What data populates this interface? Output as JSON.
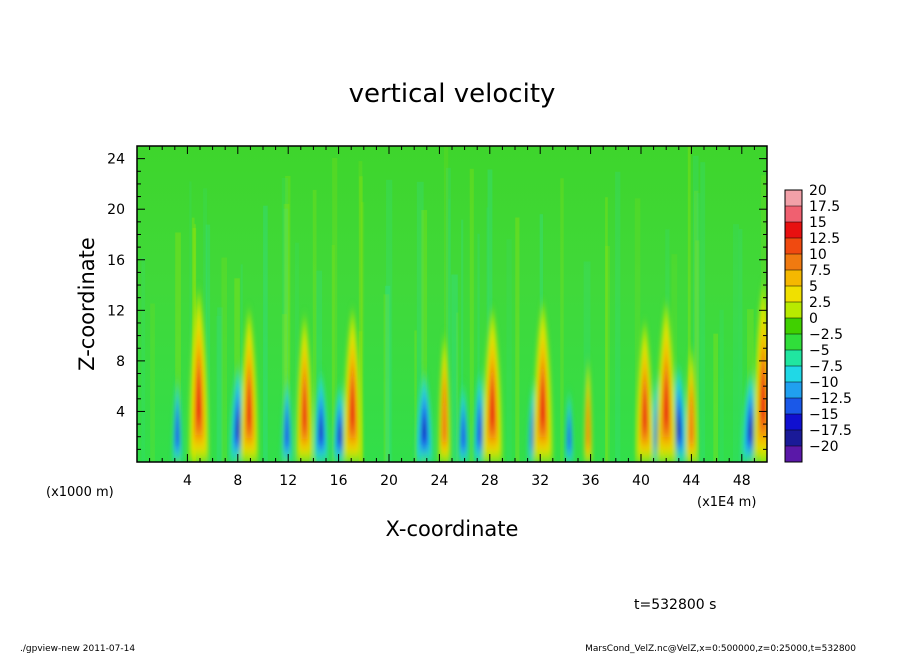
{
  "chart_data": {
    "type": "heatmap",
    "title": "vertical velocity",
    "xlabel": "X-coordinate",
    "ylabel": "Z-coordinate",
    "x_unit": "(x1E4 m)",
    "y_unit": "(x1000 m)",
    "xlim": [
      0,
      50
    ],
    "ylim": [
      0,
      25
    ],
    "x_ticks": [
      "4",
      "8",
      "12",
      "16",
      "20",
      "24",
      "28",
      "32",
      "36",
      "40",
      "44",
      "48"
    ],
    "y_ticks": [
      "4",
      "8",
      "12",
      "16",
      "20",
      "24"
    ],
    "x_tick_values": [
      4,
      8,
      12,
      16,
      20,
      24,
      28,
      32,
      36,
      40,
      44,
      48
    ],
    "y_tick_values": [
      4,
      8,
      12,
      16,
      20,
      24
    ],
    "colorbar": {
      "labels": [
        "20",
        "17.5",
        "15",
        "12.5",
        "10",
        "7.5",
        "5",
        "2.5",
        "0",
        "-2.5",
        "-5",
        "-7.5",
        "-10",
        "-12.5",
        "-15",
        "-17.5",
        "-20"
      ],
      "colors": [
        "#f2a0a8",
        "#f06070",
        "#e81010",
        "#f04a10",
        "#f07a10",
        "#f5b800",
        "#f0e000",
        "#b8ea00",
        "#40d000",
        "#30de3a",
        "#20e6a0",
        "#20d8e6",
        "#20a0f0",
        "#1a58e8",
        "#1010d0",
        "#1a1a98",
        "#5a18a8"
      ]
    },
    "plumes": [
      {
        "x": 4.9,
        "top": 13.5,
        "strength": 1.0
      },
      {
        "x": 8.9,
        "top": 12.0,
        "strength": 0.9
      },
      {
        "x": 13.3,
        "top": 11.5,
        "strength": 0.85
      },
      {
        "x": 17.1,
        "top": 12.0,
        "strength": 0.95
      },
      {
        "x": 24.4,
        "top": 10.0,
        "strength": 0.6
      },
      {
        "x": 28.2,
        "top": 12.0,
        "strength": 1.0
      },
      {
        "x": 32.2,
        "top": 12.5,
        "strength": 1.0
      },
      {
        "x": 35.8,
        "top": 8.0,
        "strength": 0.4
      },
      {
        "x": 40.3,
        "top": 11.0,
        "strength": 0.9
      },
      {
        "x": 42.0,
        "top": 12.5,
        "strength": 1.0
      },
      {
        "x": 44.0,
        "top": 9.0,
        "strength": 0.6
      },
      {
        "x": 49.7,
        "top": 14.0,
        "strength": 1.0
      }
    ],
    "downdrafts": [
      {
        "x": 3.2,
        "top": 6.5,
        "strength": 0.55
      },
      {
        "x": 8.0,
        "top": 7.5,
        "strength": 0.9
      },
      {
        "x": 11.9,
        "top": 6.5,
        "strength": 0.6
      },
      {
        "x": 14.6,
        "top": 7.0,
        "strength": 0.8
      },
      {
        "x": 16.1,
        "top": 6.0,
        "strength": 0.8
      },
      {
        "x": 22.8,
        "top": 7.0,
        "strength": 0.95
      },
      {
        "x": 25.9,
        "top": 6.0,
        "strength": 0.6
      },
      {
        "x": 27.2,
        "top": 7.0,
        "strength": 0.7
      },
      {
        "x": 31.4,
        "top": 6.0,
        "strength": 0.55
      },
      {
        "x": 34.3,
        "top": 5.5,
        "strength": 0.45
      },
      {
        "x": 41.3,
        "top": 6.5,
        "strength": 0.8
      },
      {
        "x": 43.0,
        "top": 7.5,
        "strength": 0.95
      },
      {
        "x": 48.7,
        "top": 7.0,
        "strength": 1.0
      }
    ]
  },
  "time_label": "t=532800 s",
  "footer_left": "./gpview-new   2011-07-14",
  "footer_right": "MarsCond_VelZ.nc@VelZ,x=0:500000,z=0:25000,t=532800"
}
